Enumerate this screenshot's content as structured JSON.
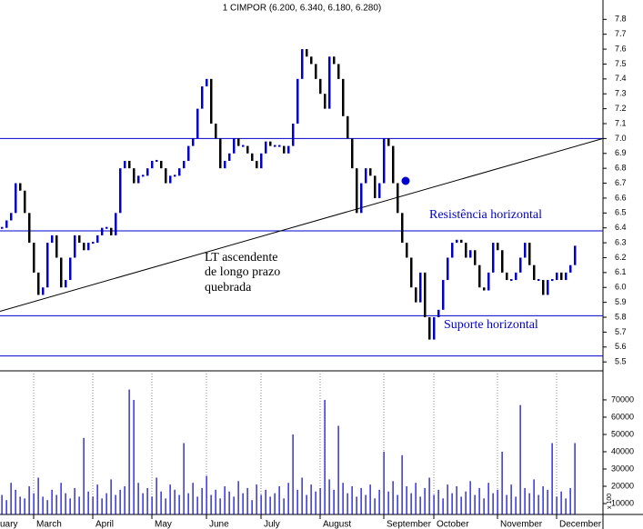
{
  "chart_data": {
    "type": "stock",
    "title": "1 CIMPOR (6.200, 6.340, 6.180, 6.280)",
    "closes": [
      6.4,
      6.45,
      6.5,
      6.7,
      6.65,
      6.5,
      6.3,
      6.1,
      5.95,
      6.0,
      6.3,
      6.35,
      6.2,
      6.0,
      6.05,
      6.2,
      6.35,
      6.3,
      6.25,
      6.3,
      6.3,
      6.35,
      6.4,
      6.4,
      6.35,
      6.5,
      6.8,
      6.85,
      6.8,
      6.7,
      6.75,
      6.75,
      6.8,
      6.85,
      6.85,
      6.8,
      6.7,
      6.75,
      6.75,
      6.8,
      6.85,
      6.95,
      7.0,
      7.2,
      7.35,
      7.4,
      7.1,
      7.0,
      6.8,
      6.85,
      6.9,
      7.0,
      6.95,
      6.95,
      6.9,
      6.85,
      6.8,
      6.9,
      6.98,
      6.95,
      6.95,
      6.95,
      6.9,
      6.95,
      7.1,
      7.4,
      7.6,
      7.55,
      7.5,
      7.4,
      7.3,
      7.2,
      7.55,
      7.5,
      7.4,
      7.15,
      7.0,
      6.8,
      6.5,
      6.7,
      6.8,
      6.75,
      6.6,
      6.7,
      7.0,
      6.95,
      6.7,
      6.5,
      6.3,
      6.2,
      6.0,
      5.9,
      6.1,
      5.8,
      5.65,
      5.8,
      5.85,
      6.05,
      6.2,
      6.3,
      6.32,
      6.3,
      6.2,
      6.25,
      6.15,
      6.0,
      5.98,
      6.1,
      6.3,
      6.25,
      6.1,
      6.05,
      6.05,
      6.1,
      6.2,
      6.3,
      6.15,
      6.05,
      6.05,
      5.95,
      6.05,
      6.05,
      6.1,
      6.05,
      6.1,
      6.15,
      6.28
    ],
    "volumes": [
      15000,
      12000,
      22000,
      18000,
      14000,
      13000,
      20000,
      16000,
      25000,
      14000,
      12000,
      18000,
      15000,
      22000,
      16000,
      13000,
      19000,
      14000,
      48000,
      17000,
      14000,
      21000,
      13000,
      16000,
      24000,
      15000,
      18000,
      20000,
      76000,
      70000,
      22000,
      16000,
      19000,
      14000,
      25000,
      17000,
      13000,
      21000,
      18000,
      15000,
      45000,
      16000,
      22000,
      14000,
      19000,
      26000,
      15000,
      18000,
      13000,
      20000,
      17000,
      14000,
      23000,
      16000,
      19000,
      12000,
      21000,
      15000,
      18000,
      14000,
      16000,
      20000,
      13000,
      22000,
      50000,
      18000,
      25000,
      15000,
      21000,
      17000,
      19000,
      70000,
      24000,
      18000,
      55000,
      22000,
      16000,
      20000,
      14000,
      19000,
      15000,
      21000,
      13000,
      18000,
      40000,
      17000,
      23000,
      15000,
      38000,
      20000,
      16000,
      22000,
      14000,
      19000,
      25000,
      15000,
      18000,
      13000,
      21000,
      16000,
      20000,
      14000,
      17000,
      23000,
      15000,
      19000,
      13000,
      22000,
      16000,
      18000,
      40000,
      15000,
      21000,
      14000,
      67000,
      19000,
      16000,
      24000,
      15000,
      20000,
      18000,
      45000,
      14000,
      17000,
      13000,
      19000,
      45000
    ],
    "xlim": [
      0,
      126
    ],
    "xticks": [
      {
        "value": -1,
        "label": "uary"
      },
      {
        "value": 7,
        "label": "March"
      },
      {
        "value": 20,
        "label": "April"
      },
      {
        "value": 33,
        "label": "May"
      },
      {
        "value": 45,
        "label": "June"
      },
      {
        "value": 57,
        "label": "July"
      },
      {
        "value": 70,
        "label": "August"
      },
      {
        "value": 84,
        "label": "September"
      },
      {
        "value": 95,
        "label": "October"
      },
      {
        "value": 109,
        "label": "November"
      },
      {
        "value": 122,
        "label": "December"
      }
    ],
    "ylim": [
      5.44,
      7.93
    ],
    "yticks": [
      5.5,
      5.6,
      5.7,
      5.8,
      5.9,
      {
        "value": 6,
        "label": "6.0"
      },
      6.1,
      6.2,
      6.3,
      6.4,
      6.5,
      6.6,
      6.7,
      6.8,
      6.9,
      {
        "value": 7,
        "label": "7.0"
      },
      7.1,
      7.2,
      7.3,
      7.4,
      7.5,
      7.6,
      7.7,
      7.8
    ],
    "y2lim": [
      3700,
      86800
    ],
    "y2ticks": [
      10000,
      20000,
      30000,
      40000,
      50000,
      60000,
      70000
    ],
    "volume_unit": "x 100",
    "up_color": "#0000cc",
    "down_color": "#000000",
    "levels": [
      7.0,
      6.38,
      5.81,
      5.54
    ],
    "trendline": [
      5.84,
      7.0
    ],
    "annotations": [
      "Resistência horizontal",
      "Suporte horizontal",
      "LT ascendente",
      "de longo prazo",
      "quebrada"
    ]
  }
}
